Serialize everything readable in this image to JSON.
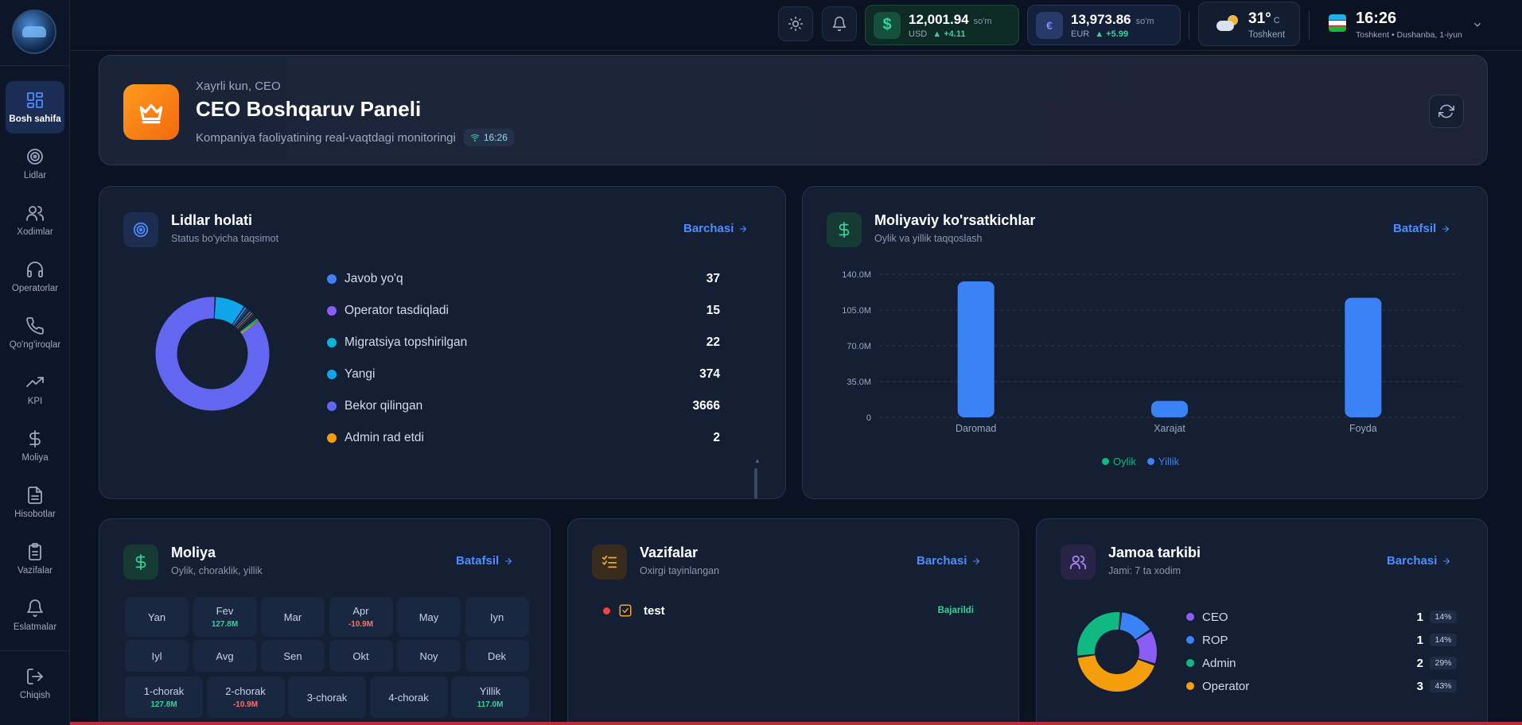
{
  "sidebar": {
    "items": [
      {
        "label": "Bosh sahifa",
        "icon": "grid-icon",
        "active": true
      },
      {
        "label": "Lidlar",
        "icon": "target-icon"
      },
      {
        "label": "Xodimlar",
        "icon": "users-icon"
      },
      {
        "label": "Operatorlar",
        "icon": "headphones-icon"
      },
      {
        "label": "Qo'ng'iroqlar",
        "icon": "phone-icon"
      },
      {
        "label": "KPI",
        "icon": "trending-up-icon"
      },
      {
        "label": "Moliya",
        "icon": "dollar-icon"
      },
      {
        "label": "Hisobotlar",
        "icon": "file-icon"
      },
      {
        "label": "Vazifalar",
        "icon": "clipboard-icon"
      },
      {
        "label": "Eslatmalar",
        "icon": "bell-icon"
      }
    ],
    "logout_label": "Chiqish"
  },
  "topbar": {
    "usd": {
      "value": "12,001.94",
      "unit": "so'm",
      "code": "USD",
      "change": "+4.11",
      "icon": "dollar-icon"
    },
    "eur": {
      "value": "13,973.86",
      "unit": "so'm",
      "code": "EUR",
      "change": "+5.99",
      "icon": "euro-icon"
    },
    "weather": {
      "temp": "31°",
      "unit": "C",
      "city": "Toshkent",
      "icon": "partly-cloudy-icon"
    },
    "clock": {
      "time": "16:26",
      "date": "Toshkent • Dushanba, 1-iyun"
    }
  },
  "hero": {
    "greeting": "Xayrli kun, CEO",
    "title": "CEO Boshqaruv Paneli",
    "subtitle": "Kompaniya faoliyatining real-vaqtdagi monitoringi",
    "live_time": "16:26"
  },
  "leads": {
    "title": "Lidlar holati",
    "subtitle": "Status bo'yicha taqsimot",
    "link": "Barchasi",
    "items": [
      {
        "label": "Javob yo'q",
        "count": "37",
        "color": "#3b82f6"
      },
      {
        "label": "Operator tasdiqladi",
        "count": "15",
        "color": "#8b5cf6"
      },
      {
        "label": "Migratsiya topshirilgan",
        "count": "22",
        "color": "#06b6d4"
      },
      {
        "label": "Yangi",
        "count": "374",
        "color": "#0ea5e9"
      },
      {
        "label": "Bekor qilingan",
        "count": "3666",
        "color": "#6366f1"
      },
      {
        "label": "Admin rad etdi",
        "count": "2",
        "color": "#f59e0b"
      }
    ]
  },
  "finance_chart": {
    "title": "Moliyaviy ko'rsatkichlar",
    "subtitle": "Oylik va yillik taqqoslash",
    "link": "Batafsil"
  },
  "chart_data": {
    "type": "bar",
    "categories": [
      "Daromad",
      "Xarajat",
      "Foyda"
    ],
    "series": [
      {
        "name": "Oylik",
        "values": [
          0,
          0,
          0
        ],
        "color": "#10b981"
      },
      {
        "name": "Yillik",
        "values": [
          133000000,
          16000000,
          117000000
        ],
        "color": "#3b82f6"
      }
    ],
    "yticks": [
      "0",
      "35.0M",
      "70.0M",
      "105.0M",
      "140.0M"
    ],
    "ylim": [
      0,
      140000000
    ],
    "legend": "bottom",
    "grid": true
  },
  "moliya": {
    "title": "Moliya",
    "subtitle": "Oylik, choraklik, yillik",
    "link": "Batafsil",
    "months": [
      {
        "name": "Yan",
        "value": ""
      },
      {
        "name": "Fev",
        "value": "127.8M",
        "sign": "pos"
      },
      {
        "name": "Mar",
        "value": ""
      },
      {
        "name": "Apr",
        "value": "-10.9M",
        "sign": "neg"
      },
      {
        "name": "May",
        "value": ""
      },
      {
        "name": "Iyn",
        "value": ""
      },
      {
        "name": "Iyl",
        "value": ""
      },
      {
        "name": "Avg",
        "value": ""
      },
      {
        "name": "Sen",
        "value": ""
      },
      {
        "name": "Okt",
        "value": ""
      },
      {
        "name": "Noy",
        "value": ""
      },
      {
        "name": "Dek",
        "value": ""
      }
    ],
    "quarters": [
      {
        "name": "1-chorak",
        "value": "127.8M",
        "sign": "pos"
      },
      {
        "name": "2-chorak",
        "value": "-10.9M",
        "sign": "neg"
      },
      {
        "name": "3-chorak",
        "value": ""
      },
      {
        "name": "4-chorak",
        "value": ""
      },
      {
        "name": "Yillik",
        "value": "117.0M",
        "sign": "pos"
      }
    ]
  },
  "tasks": {
    "title": "Vazifalar",
    "subtitle": "Oxirgi tayinlangan",
    "link": "Barchasi",
    "items": [
      {
        "name": "test",
        "status": "Bajarildi"
      }
    ]
  },
  "team": {
    "title": "Jamoa tarkibi",
    "subtitle": "Jami: 7 ta xodim",
    "link": "Barchasi",
    "items": [
      {
        "label": "CEO",
        "count": "1",
        "pct": "14%",
        "color": "#8b5cf6"
      },
      {
        "label": "ROP",
        "count": "1",
        "pct": "14%",
        "color": "#3b82f6"
      },
      {
        "label": "Admin",
        "count": "2",
        "pct": "29%",
        "color": "#10b981"
      },
      {
        "label": "Operator",
        "count": "3",
        "pct": "43%",
        "color": "#f59e0b"
      }
    ]
  }
}
